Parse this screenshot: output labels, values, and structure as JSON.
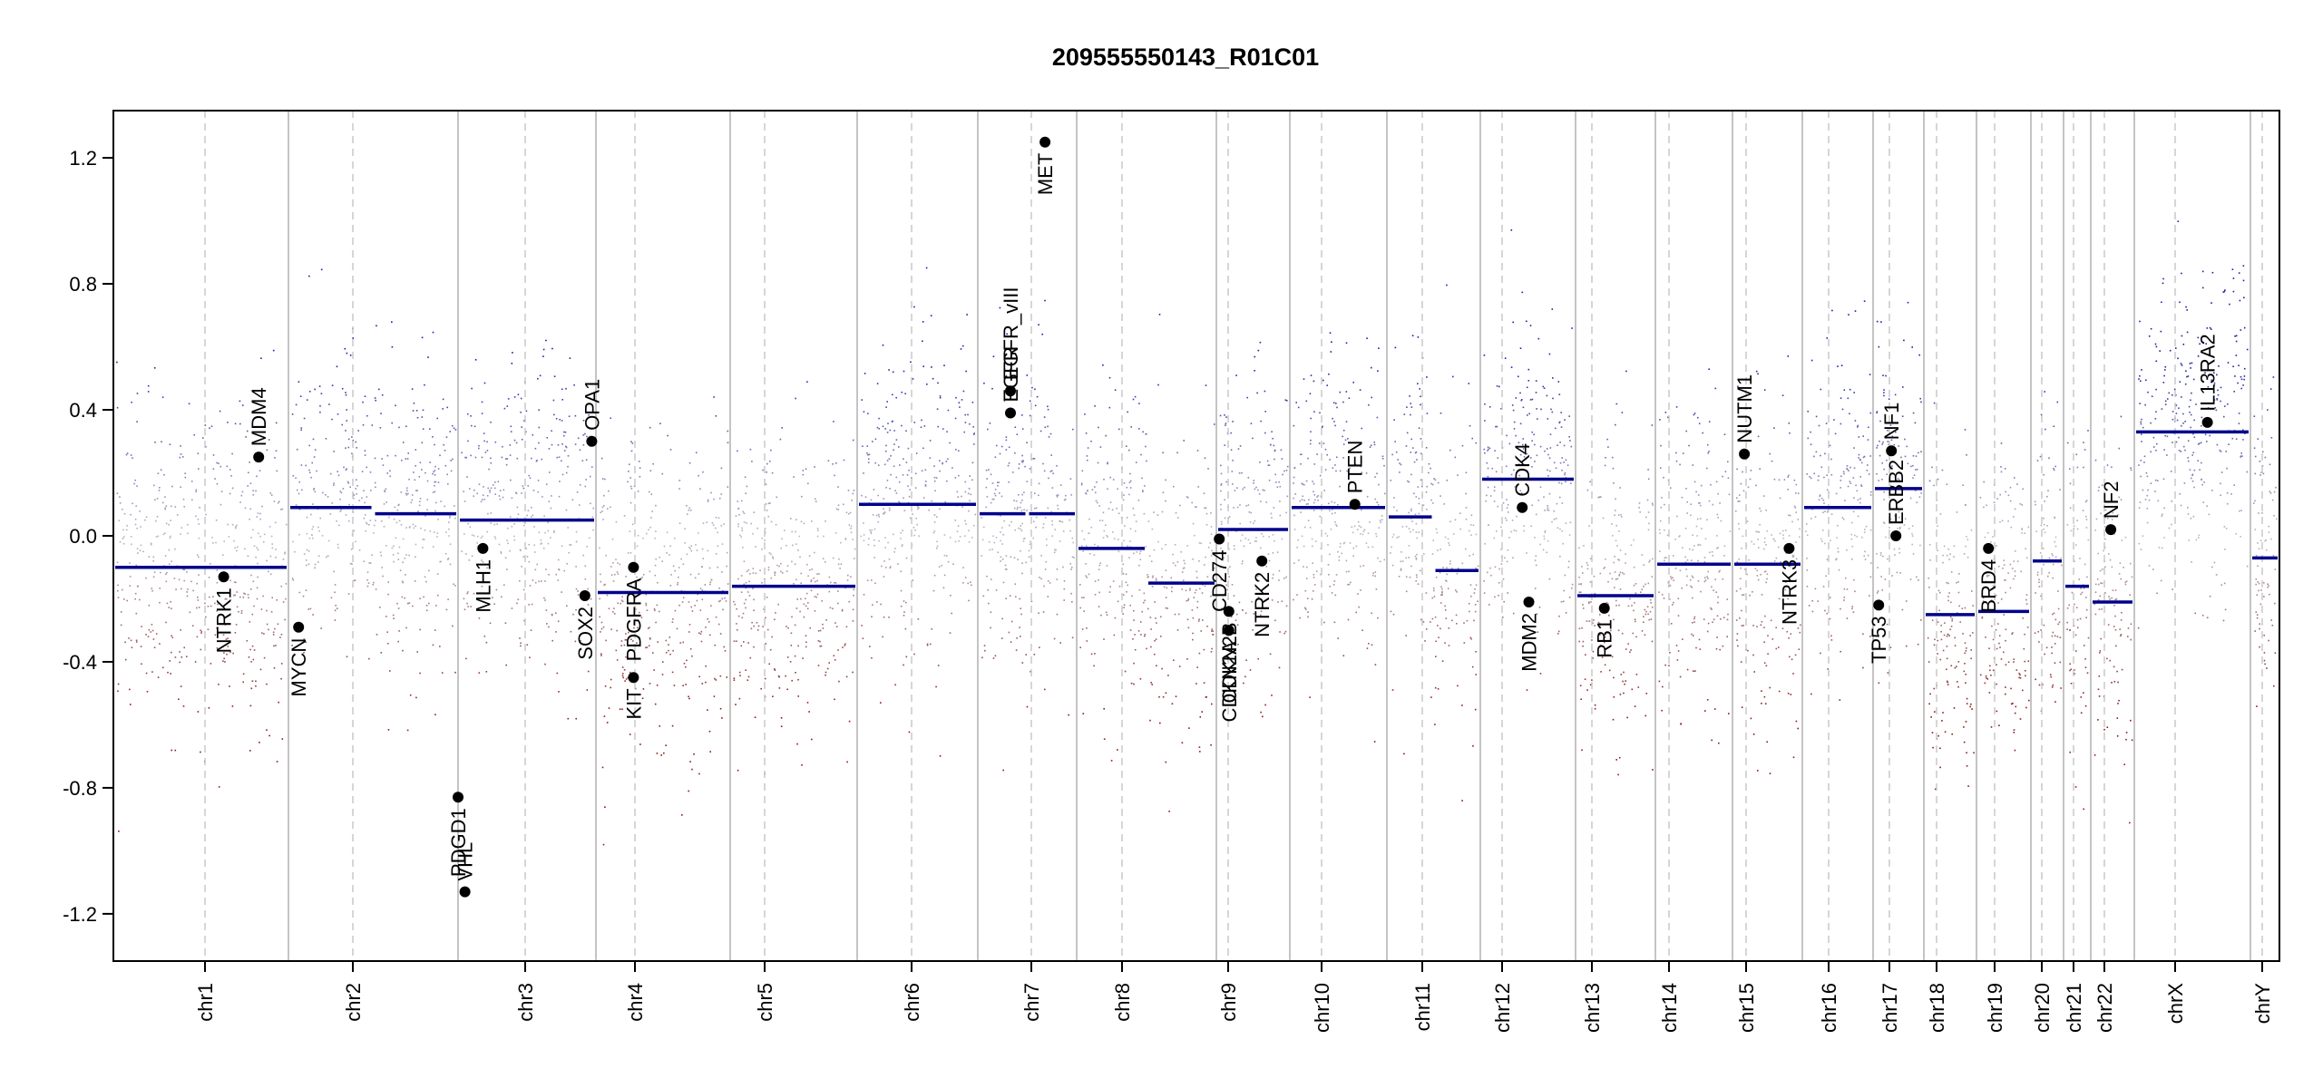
{
  "chart_data": {
    "type": "scatter",
    "title": "209555550143_R01C01",
    "xlabel": "",
    "ylabel": "",
    "ylim": [
      -1.35,
      1.35
    ],
    "y_ticks": [
      -1.2,
      -0.8,
      -0.4,
      0.0,
      0.4,
      0.8,
      1.2
    ],
    "y_tick_labels": [
      "-1.2",
      "-0.8",
      "-0.4",
      "0.0",
      "0.4",
      "0.8",
      "1.2"
    ],
    "grid": false,
    "legend": "none",
    "colors": {
      "gain": "#1f1f9e",
      "loss": "#8b1a1a",
      "neutral": "#b8b8c4",
      "segment": "#00008b",
      "chr_boundary": "#b0b0b0",
      "centromere": "#c8c8c8"
    },
    "chromosomes": [
      {
        "name": "chr1",
        "segments": [
          -0.1
        ]
      },
      {
        "name": "chr2",
        "segments": [
          0.09,
          0.07
        ]
      },
      {
        "name": "chr3",
        "segments": [
          0.05
        ]
      },
      {
        "name": "chr4",
        "segments": [
          -0.18
        ]
      },
      {
        "name": "chr5",
        "segments": [
          -0.16
        ]
      },
      {
        "name": "chr6",
        "segments": [
          0.1
        ]
      },
      {
        "name": "chr7",
        "segments": [
          0.07,
          0.07
        ]
      },
      {
        "name": "chr8",
        "segments": [
          -0.04,
          -0.15
        ]
      },
      {
        "name": "chr9",
        "segments": [
          0.02
        ]
      },
      {
        "name": "chr10",
        "segments": [
          0.09
        ]
      },
      {
        "name": "chr11",
        "segments": [
          0.06,
          -0.11
        ]
      },
      {
        "name": "chr12",
        "segments": [
          0.18
        ]
      },
      {
        "name": "chr13",
        "segments": [
          -0.19
        ]
      },
      {
        "name": "chr14",
        "segments": [
          -0.09
        ]
      },
      {
        "name": "chr15",
        "segments": [
          -0.09
        ]
      },
      {
        "name": "chr16",
        "segments": [
          0.09
        ]
      },
      {
        "name": "chr17",
        "segments": [
          0.15
        ]
      },
      {
        "name": "chr18",
        "segments": [
          -0.25
        ]
      },
      {
        "name": "chr19",
        "segments": [
          -0.24
        ]
      },
      {
        "name": "chr20",
        "segments": [
          -0.08
        ]
      },
      {
        "name": "chr21",
        "segments": [
          -0.16
        ]
      },
      {
        "name": "chr22",
        "segments": [
          -0.21
        ]
      },
      {
        "name": "chrX",
        "segments": [
          0.33
        ]
      },
      {
        "name": "chrY",
        "segments": [
          -0.07
        ]
      }
    ],
    "genes": [
      {
        "name": "NTRK1",
        "chr": "chr1",
        "pos": 0.63,
        "value": -0.13,
        "label_side": "below"
      },
      {
        "name": "MDM4",
        "chr": "chr1",
        "pos": 0.83,
        "value": 0.25,
        "label_side": "above"
      },
      {
        "name": "MYCN",
        "chr": "chr2",
        "pos": 0.06,
        "value": -0.29,
        "label_side": "below"
      },
      {
        "name": "VHL",
        "chr": "chr3",
        "pos": 0.05,
        "value": -1.13,
        "label_side": "above"
      },
      {
        "name": "PDGD1",
        "chr": "chr3",
        "pos": 0.0,
        "value": -0.83,
        "label_side": "below"
      },
      {
        "name": "MLH1",
        "chr": "chr3",
        "pos": 0.18,
        "value": -0.04,
        "label_side": "below"
      },
      {
        "name": "SOX2",
        "chr": "chr3",
        "pos": 0.92,
        "value": -0.19,
        "label_side": "below"
      },
      {
        "name": "OPA1",
        "chr": "chr3",
        "pos": 0.97,
        "value": 0.3,
        "label_side": "above"
      },
      {
        "name": "PDGFRA",
        "chr": "chr4",
        "pos": 0.28,
        "value": -0.1,
        "label_side": "below"
      },
      {
        "name": "KIT",
        "chr": "chr4",
        "pos": 0.28,
        "value": -0.45,
        "label_side": "below"
      },
      {
        "name": "EGFR",
        "chr": "chr7",
        "pos": 0.33,
        "value": 0.39,
        "label_side": "above"
      },
      {
        "name": "EGFR_vIII",
        "chr": "chr7",
        "pos": 0.33,
        "value": 0.46,
        "label_side": "above"
      },
      {
        "name": "MET",
        "chr": "chr7",
        "pos": 0.68,
        "value": 1.25,
        "label_side": "below"
      },
      {
        "name": "CDKN2A",
        "chr": "chr9",
        "pos": 0.17,
        "value": -0.3,
        "label_side": "below"
      },
      {
        "name": "CDKN2B",
        "chr": "chr9",
        "pos": 0.17,
        "value": -0.24,
        "label_side": "below"
      },
      {
        "name": "CD274",
        "chr": "chr9",
        "pos": 0.04,
        "value": -0.01,
        "label_side": "below"
      },
      {
        "name": "NTRK2",
        "chr": "chr9",
        "pos": 0.62,
        "value": -0.08,
        "label_side": "below"
      },
      {
        "name": "PTEN",
        "chr": "chr10",
        "pos": 0.67,
        "value": 0.1,
        "label_side": "above"
      },
      {
        "name": "CDK4",
        "chr": "chr12",
        "pos": 0.44,
        "value": 0.09,
        "label_side": "above"
      },
      {
        "name": "MDM2",
        "chr": "chr12",
        "pos": 0.51,
        "value": -0.21,
        "label_side": "below"
      },
      {
        "name": "RB1",
        "chr": "chr13",
        "pos": 0.36,
        "value": -0.23,
        "label_side": "below"
      },
      {
        "name": "NUTM1",
        "chr": "chr15",
        "pos": 0.17,
        "value": 0.26,
        "label_side": "above"
      },
      {
        "name": "NTRK3",
        "chr": "chr15",
        "pos": 0.81,
        "value": -0.04,
        "label_side": "below"
      },
      {
        "name": "TP53",
        "chr": "chr17",
        "pos": 0.11,
        "value": -0.22,
        "label_side": "below"
      },
      {
        "name": "ERBB2",
        "chr": "chr17",
        "pos": 0.45,
        "value": 0.0,
        "label_side": "above"
      },
      {
        "name": "NF1",
        "chr": "chr17",
        "pos": 0.36,
        "value": 0.27,
        "label_side": "above"
      },
      {
        "name": "BRD4",
        "chr": "chr19",
        "pos": 0.22,
        "value": -0.04,
        "label_side": "below"
      },
      {
        "name": "NF2",
        "chr": "chr22",
        "pos": 0.46,
        "value": 0.02,
        "label_side": "above"
      },
      {
        "name": "IL13RA2",
        "chr": "chrX",
        "pos": 0.63,
        "value": 0.36,
        "label_side": "above"
      }
    ]
  }
}
